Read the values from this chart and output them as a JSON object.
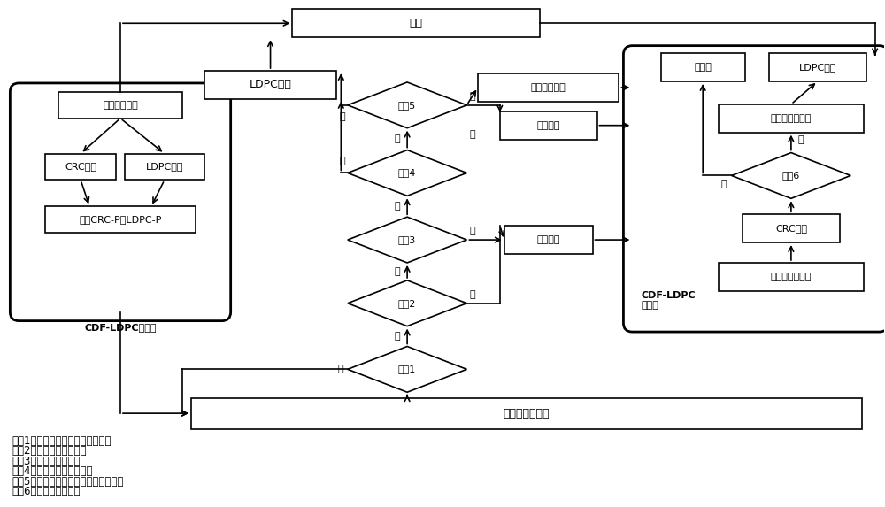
{
  "bg_color": "#ffffff",
  "line_color": "#000000",
  "fs": 9,
  "fss": 8,
  "legend_lines": [
    "条件1：错误页概率是否大于阈值？",
    "条件2：固态盘是否空闲？",
    "条件3：该块是否写满？",
    "条件4：该块是否被检测过？",
    "条件5：固态盘内部平行属性是否可用？",
    "条件6：该页是否无错？"
  ]
}
